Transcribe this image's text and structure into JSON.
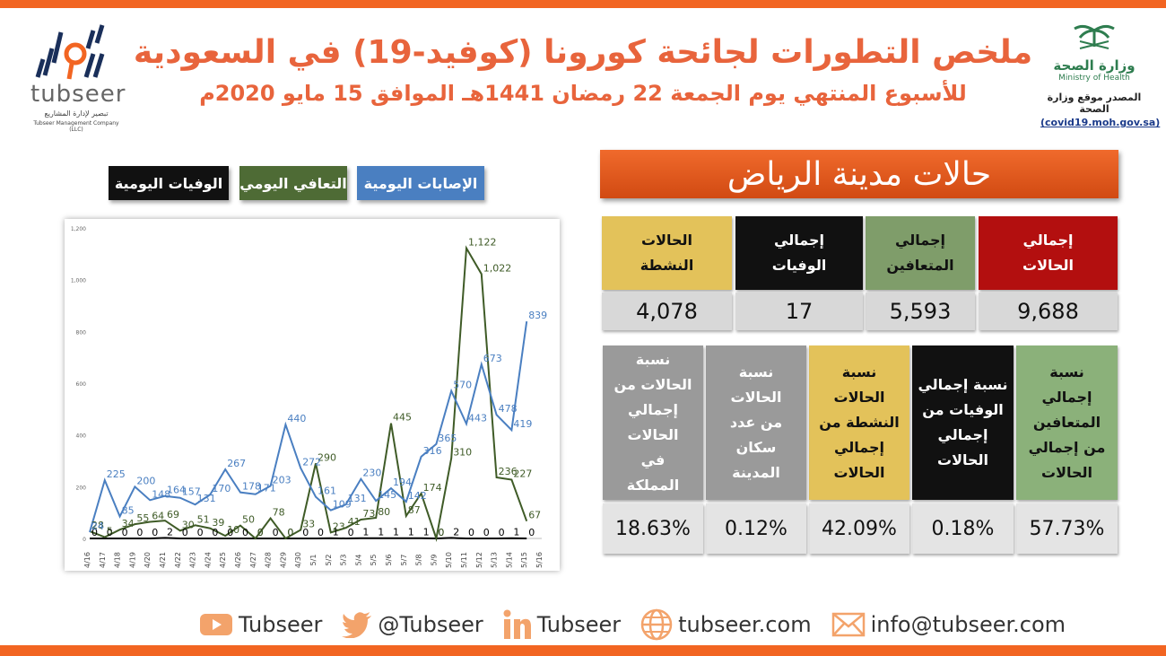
{
  "header": {
    "title": "ملخص التطورات لجائحة كورونا (كوفيد-19) في السعودية",
    "subtitle": "للأسبوع المنتهي يوم الجمعة 22 رمضان 1441هـ الموافق 15 مايو 2020م"
  },
  "brand": {
    "name": "tubseer",
    "tagline_ar": "تبصير لإدارة المشاريع",
    "tagline_en": "Tubseer Management Company (LLC)"
  },
  "moh": {
    "name_ar": "وزارة الصحة",
    "name_en": "Ministry of Health",
    "source_label": "المصدر موقع وزارة الصحة",
    "source_url": "(covid19.moh.gov.sa)"
  },
  "legend": {
    "infections": "الإصابات اليومية",
    "recoveries": "التعافي اليومي",
    "deaths": "الوفيات اليومية"
  },
  "colors": {
    "accent": "#f26522",
    "infections": "#4a7fc1",
    "recoveries": "#3f5b27",
    "deaths": "#000000",
    "banner": "#e8562a",
    "total_header": "#b30f0f",
    "recovered_header": "#7f9d6a",
    "deaths_header": "#111111",
    "active_header": "#e3c25a",
    "value_bg": "#d8d8d8",
    "ratio_recovered_header": "#8bb17a",
    "ratio_deaths_header": "#111111",
    "ratio_active_header": "#e3c25a",
    "ratio_pop_header": "#9a9a9a",
    "ratio_kingdom_header": "#9a9a9a"
  },
  "riyadh": {
    "banner": "حالات مدينة الرياض",
    "total": {
      "label": "إجمالي الحالات",
      "value": "9,688"
    },
    "recovered": {
      "label": "إجمالي المتعافين",
      "value": "5,593"
    },
    "deaths": {
      "label": "إجمالي الوفيات",
      "value": "17"
    },
    "active": {
      "label": "الحالات النشطة",
      "value": "4,078"
    },
    "ratios": [
      {
        "label": "نسبة إجمالي المتعافين من إجمالي الحالات",
        "value": "57.73%"
      },
      {
        "label": "نسبة إجمالي الوفيات من إجمالي الحالات",
        "value": "0.18%"
      },
      {
        "label": "نسبة الحالات النشطة من إجمالي الحالات",
        "value": "42.09%"
      },
      {
        "label": "نسبة الحالات من عدد سكان المدينة",
        "value": "0.12%"
      },
      {
        "label": "نسبة الحالات من إجمالي الحالات في المملكة",
        "value": "18.63%"
      }
    ]
  },
  "footer": {
    "youtube": "Tubseer",
    "twitter": "@Tubseer",
    "linkedin": "Tubseer",
    "website": "tubseer.com",
    "email": "info@tubseer.com"
  },
  "chart_data": {
    "type": "line",
    "x": [
      "4/16",
      "4/17",
      "4/18",
      "4/19",
      "4/20",
      "4/21",
      "4/22",
      "4/23",
      "4/24",
      "4/25",
      "4/26",
      "4/27",
      "4/28",
      "4/29",
      "4/30",
      "5/1",
      "5/2",
      "5/3",
      "5/4",
      "5/5",
      "5/6",
      "5/7",
      "5/8",
      "5/9",
      "5/10",
      "5/11",
      "5/12",
      "5/13",
      "5/14",
      "5/15",
      "5/16"
    ],
    "xlabels": [
      "4/16",
      "4/17",
      "4/18",
      "4/19",
      "4/20",
      "4/21",
      "4/22",
      "4/23",
      "4/24",
      "4/25",
      "4/26",
      "4/27",
      "4/28",
      "4/29",
      "4/30",
      "5/1",
      "5/2",
      "5/3",
      "5/4",
      "5/5",
      "5/6",
      "5/7",
      "5/8",
      "5/9",
      "5/10",
      "5/11",
      "5/12",
      "5/13",
      "5/14",
      "5/15",
      "5/16"
    ],
    "ylim": [
      0,
      1200
    ],
    "yticks": [
      0,
      200,
      400,
      600,
      800,
      1000,
      1200
    ],
    "ytick_labels": [
      "0",
      "200",
      "400",
      "600",
      "800",
      "1,000",
      "1,200"
    ],
    "grid": false,
    "series": [
      {
        "name": "الإصابات اليومية",
        "color": "#4a7fc1",
        "values": [
          24,
          225,
          85,
          200,
          148,
          164,
          157,
          131,
          170,
          267,
          178,
          171,
          203,
          440,
          272,
          161,
          109,
          131,
          230,
          145,
          194,
          142,
          316,
          365,
          570,
          443,
          673,
          478,
          419,
          839,
          null
        ]
      },
      {
        "name": "التعافي اليومي",
        "color": "#3f5b27",
        "values": [
          28,
          5,
          34,
          55,
          64,
          69,
          30,
          51,
          39,
          10,
          50,
          0,
          78,
          0,
          33,
          290,
          23,
          41,
          73,
          80,
          445,
          87,
          174,
          0,
          310,
          1122,
          1022,
          236,
          227,
          67,
          null
        ]
      },
      {
        "name": "الوفيات اليومية",
        "color": "#000000",
        "values": [
          0,
          0,
          0,
          0,
          0,
          2,
          0,
          0,
          0,
          0,
          0,
          0,
          0,
          0,
          0,
          0,
          1,
          0,
          1,
          1,
          1,
          1,
          1,
          0,
          2,
          0,
          0,
          0,
          1,
          0,
          null
        ]
      }
    ],
    "point_labels": {
      "infections": [
        "24",
        "225",
        "85",
        "200",
        "148",
        "164",
        "157",
        "131",
        "170",
        "267",
        "178",
        "171",
        "203",
        "440",
        "272",
        "161",
        "109",
        "131",
        "230",
        "145",
        "194",
        "142",
        "316",
        "365",
        "570",
        "443",
        "673",
        "478",
        "419",
        "839",
        ""
      ],
      "recoveries": [
        "28",
        "5",
        "34",
        "55",
        "64",
        "69",
        "30",
        "51",
        "39",
        "10",
        "50",
        "0",
        "78",
        "0",
        "33",
        "290",
        "23",
        "41",
        "73",
        "80",
        "445",
        "87",
        "174",
        "0",
        "310",
        "1,122",
        "1,022",
        "236",
        "227",
        "67",
        ""
      ],
      "deaths": [
        "0",
        "0",
        "0",
        "0",
        "0",
        "2",
        "0",
        "0",
        "0",
        "0",
        "0",
        "0",
        "0",
        "0",
        "0",
        "0",
        "1",
        "0",
        "1",
        "1",
        "1",
        "1",
        "1",
        "0",
        "2",
        "0",
        "0",
        "0",
        "1",
        "0",
        ""
      ]
    }
  }
}
